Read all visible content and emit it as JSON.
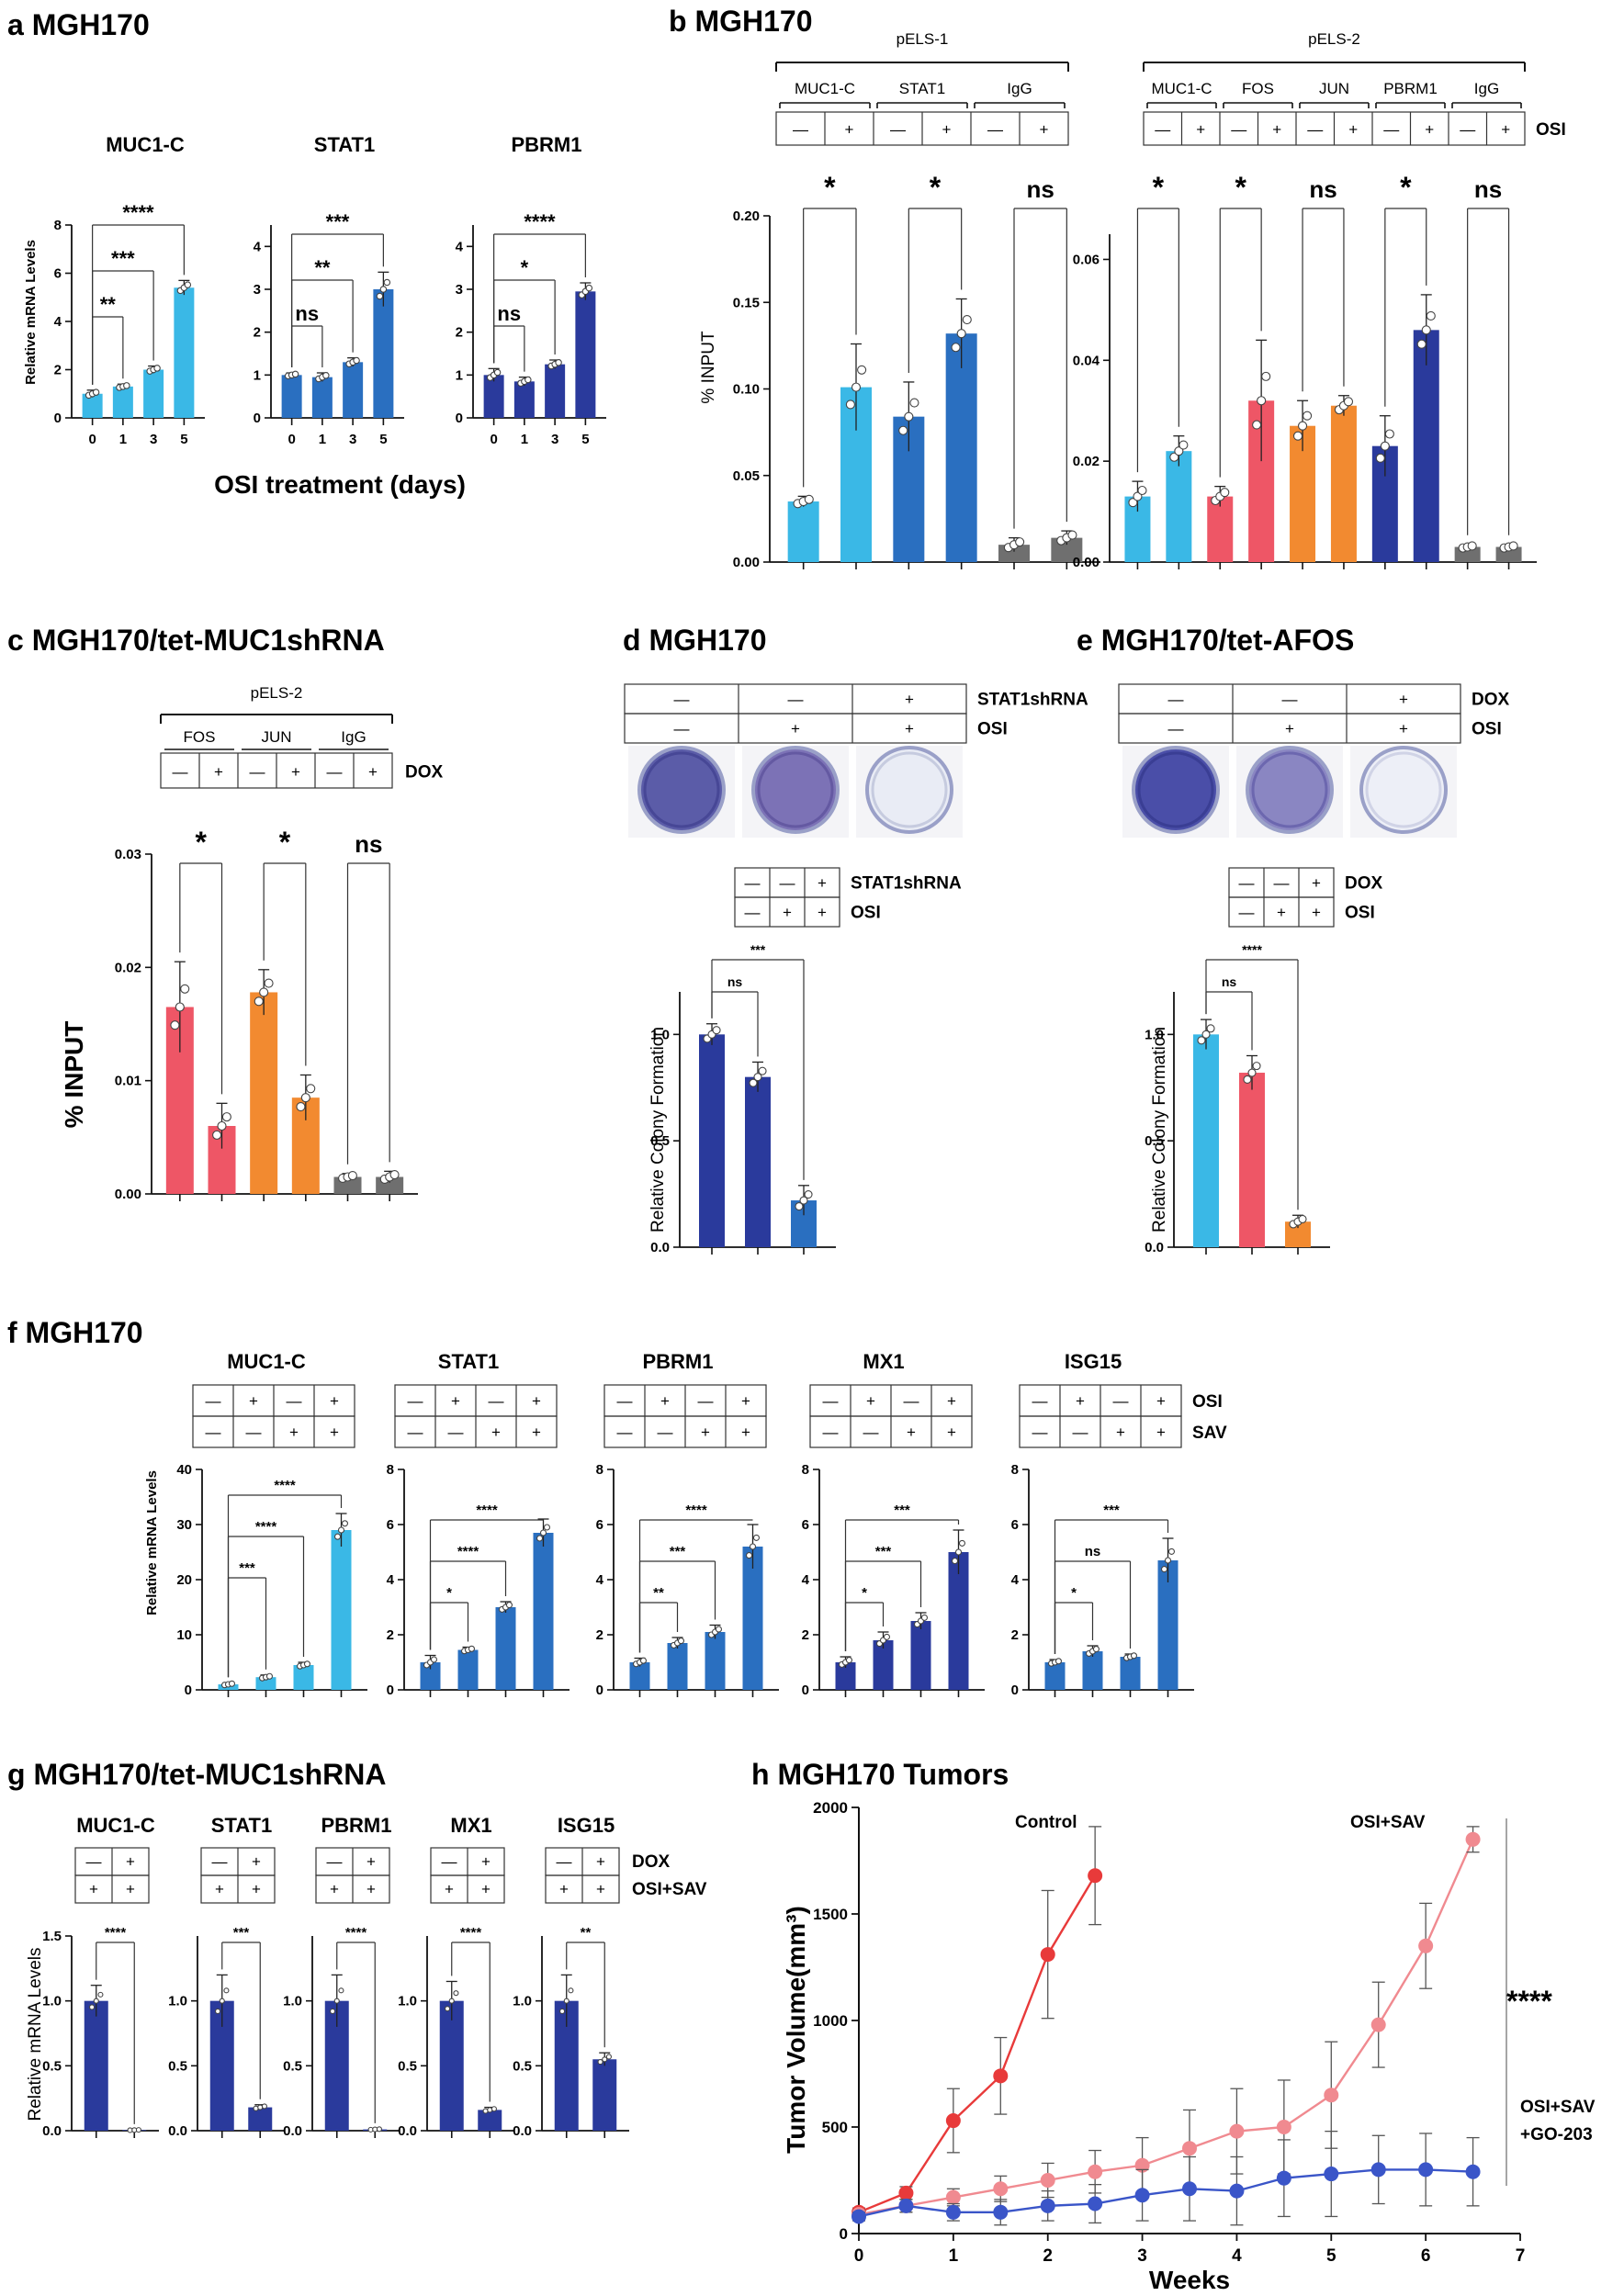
{
  "colors": {
    "cyan": "#3ab8e6",
    "blue": "#2a6fc0",
    "navy": "#2a3a9c",
    "red": "#ee5666",
    "orange": "#f28a30",
    "gray": "#6f6f6f",
    "tumor_control": "#e83a3a",
    "tumor_osisav": "#f08a90",
    "tumor_go": "#3a55c8"
  },
  "labels": {
    "a": "a MGH170",
    "b": "b MGH170",
    "c": "c MGH170/tet-MUC1shRNA",
    "d": "d MGH170",
    "e": "e MGH170/tet-AFOS",
    "f": "f MGH170",
    "g": "g MGH170/tet-MUC1shRNA",
    "h": "h MGH170 Tumors"
  },
  "text": {
    "a_xlabel": "OSI treatment (days)",
    "ylab_mrna": "Relative mRNA Levels",
    "ylab_input": "% INPUT",
    "ylab_colony": "Relative Colony Formation",
    "b_left_group": "pELS-1",
    "b_right_group": "pELS-2",
    "c_group": "pELS-2",
    "osi": "OSI",
    "dox": "DOX",
    "sav": "SAV",
    "osi_sav": "OSI+SAV",
    "stat1shrna": "STAT1shRNA",
    "h_xlabel": "Weeks",
    "h_ylabel": "Tumor Volume(mm³)",
    "h_control": "Control",
    "h_osisav": "OSI+SAV",
    "h_go_line1": "OSI+SAV",
    "h_go_line2": "+GO-203",
    "h_sig": "****"
  },
  "chart_data": [
    {
      "id": "a",
      "type": "bar",
      "ylabel": "Relative mRNA Levels",
      "xlabel": "OSI treatment (days)",
      "categories": [
        "0",
        "1",
        "3",
        "5"
      ],
      "subplots": [
        {
          "title": "MUC1-C",
          "ylim": [
            0,
            8
          ],
          "yticks": [
            0,
            2,
            4,
            6,
            8
          ],
          "values": [
            1.0,
            1.3,
            2.0,
            5.4
          ],
          "errors": [
            0.15,
            0.1,
            0.15,
            0.3
          ],
          "sig": [
            {
              "a": 0,
              "b": 1,
              "t": "**"
            },
            {
              "a": 0,
              "b": 2,
              "t": "***"
            },
            {
              "a": 0,
              "b": 3,
              "t": "****"
            }
          ]
        },
        {
          "title": "STAT1",
          "ylim": [
            0,
            4.5
          ],
          "yticks": [
            0,
            1,
            2,
            3,
            4
          ],
          "values": [
            1.0,
            0.95,
            1.3,
            3.0
          ],
          "errors": [
            0.05,
            0.1,
            0.1,
            0.4
          ],
          "sig": [
            {
              "a": 0,
              "b": 1,
              "t": "ns"
            },
            {
              "a": 0,
              "b": 2,
              "t": "**"
            },
            {
              "a": 0,
              "b": 3,
              "t": "***"
            }
          ]
        },
        {
          "title": "PBRM1",
          "ylim": [
            0,
            4.5
          ],
          "yticks": [
            0,
            1,
            2,
            3,
            4
          ],
          "values": [
            1.0,
            0.85,
            1.25,
            2.95
          ],
          "errors": [
            0.15,
            0.1,
            0.1,
            0.2
          ],
          "sig": [
            {
              "a": 0,
              "b": 1,
              "t": "ns"
            },
            {
              "a": 0,
              "b": 2,
              "t": "*"
            },
            {
              "a": 0,
              "b": 3,
              "t": "****"
            }
          ]
        }
      ]
    },
    {
      "id": "b",
      "type": "bar",
      "ylabel": "% INPUT",
      "subplots": [
        {
          "group": "pELS-1",
          "ylim": [
            0,
            0.2
          ],
          "yticks": [
            "0.00",
            "0.05",
            "0.10",
            "0.15",
            "0.20"
          ],
          "targets": [
            "MUC1-C",
            "STAT1",
            "IgG"
          ],
          "osi": [
            "—",
            "+",
            "—",
            "+",
            "—",
            "+"
          ],
          "values": [
            0.035,
            0.101,
            0.084,
            0.132,
            0.01,
            0.014
          ],
          "errors": [
            0.003,
            0.025,
            0.02,
            0.02,
            0.004,
            0.004
          ],
          "sig": [
            "*",
            "*",
            "ns"
          ]
        },
        {
          "group": "pELS-2",
          "ylim": [
            0,
            0.065
          ],
          "yticks": [
            "0.00",
            "0.02",
            "0.04",
            "0.06"
          ],
          "targets": [
            "MUC1-C",
            "FOS",
            "JUN",
            "PBRM1",
            "IgG"
          ],
          "osi": [
            "—",
            "+",
            "—",
            "+",
            "—",
            "+",
            "—",
            "+",
            "—",
            "+"
          ],
          "values": [
            0.013,
            0.022,
            0.013,
            0.032,
            0.027,
            0.031,
            0.023,
            0.046,
            0.003,
            0.003
          ],
          "errors": [
            0.003,
            0.003,
            0.002,
            0.012,
            0.005,
            0.002,
            0.006,
            0.007,
            0.0005,
            0.0005
          ],
          "sig": [
            "*",
            "*",
            "ns",
            "*",
            "ns"
          ]
        }
      ]
    },
    {
      "id": "c",
      "type": "bar",
      "ylabel": "% INPUT",
      "group": "pELS-2",
      "ylim": [
        0,
        0.03
      ],
      "yticks": [
        "0.00",
        "0.01",
        "0.02",
        "0.03"
      ],
      "targets": [
        "FOS",
        "JUN",
        "IgG"
      ],
      "dox": [
        "—",
        "+",
        "—",
        "+",
        "—",
        "+"
      ],
      "values": [
        0.0165,
        0.006,
        0.0178,
        0.0085,
        0.0015,
        0.0015
      ],
      "errors": [
        0.004,
        0.002,
        0.002,
        0.002,
        0.0003,
        0.0005
      ],
      "sig": [
        "*",
        "*",
        "ns"
      ]
    },
    {
      "id": "d",
      "type": "bar",
      "ylabel": "Relative Colony Formation",
      "plate_rows": [
        {
          "label": "STAT1shRNA",
          "vals": [
            "—",
            "—",
            "+"
          ]
        },
        {
          "label": "OSI",
          "vals": [
            "—",
            "+",
            "+"
          ]
        }
      ],
      "table_rows": [
        {
          "label": "STAT1shRNA",
          "vals": [
            "—",
            "—",
            "+"
          ]
        },
        {
          "label": "OSI",
          "vals": [
            "—",
            "+",
            "+"
          ]
        }
      ],
      "ylim": [
        0,
        1.2
      ],
      "yticks": [
        "0.0",
        "0.5",
        "1.0"
      ],
      "values": [
        1.0,
        0.8,
        0.22
      ],
      "errors": [
        0.05,
        0.07,
        0.07
      ],
      "sig": [
        {
          "a": 0,
          "b": 1,
          "t": "ns"
        },
        {
          "a": 0,
          "b": 2,
          "t": "***"
        }
      ]
    },
    {
      "id": "e",
      "type": "bar",
      "ylabel": "Relative Colony Formation",
      "plate_rows": [
        {
          "label": "DOX",
          "vals": [
            "—",
            "—",
            "+"
          ]
        },
        {
          "label": "OSI",
          "vals": [
            "—",
            "+",
            "+"
          ]
        }
      ],
      "table_rows": [
        {
          "label": "DOX",
          "vals": [
            "—",
            "—",
            "+"
          ]
        },
        {
          "label": "OSI",
          "vals": [
            "—",
            "+",
            "+"
          ]
        }
      ],
      "ylim": [
        0,
        1.2
      ],
      "yticks": [
        "0.0",
        "0.5",
        "1.0"
      ],
      "values": [
        1.0,
        0.82,
        0.12
      ],
      "errors": [
        0.07,
        0.08,
        0.03
      ],
      "sig": [
        {
          "a": 0,
          "b": 1,
          "t": "ns"
        },
        {
          "a": 0,
          "b": 2,
          "t": "****"
        }
      ]
    },
    {
      "id": "f",
      "type": "bar",
      "ylabel": "Relative mRNA Levels",
      "rows": [
        {
          "label": "OSI",
          "vals": [
            "—",
            "+",
            "—",
            "+"
          ]
        },
        {
          "label": "SAV",
          "vals": [
            "—",
            "—",
            "+",
            "+"
          ]
        }
      ],
      "subplots": [
        {
          "title": "MUC1-C",
          "ylim": [
            0,
            40
          ],
          "yticks": [
            0,
            10,
            20,
            30,
            40
          ],
          "values": [
            1,
            2.3,
            4.5,
            29
          ],
          "errors": [
            0.3,
            0.4,
            0.5,
            3
          ],
          "sig": [
            {
              "a": 0,
              "b": 1,
              "t": "***"
            },
            {
              "a": 0,
              "b": 2,
              "t": "****"
            },
            {
              "a": 0,
              "b": 3,
              "t": "****"
            }
          ]
        },
        {
          "title": "STAT1",
          "ylim": [
            0,
            8
          ],
          "yticks": [
            0,
            2,
            4,
            6,
            8
          ],
          "values": [
            1.0,
            1.45,
            3.0,
            5.7
          ],
          "errors": [
            0.25,
            0.1,
            0.2,
            0.5
          ],
          "sig": [
            {
              "a": 0,
              "b": 1,
              "t": "*"
            },
            {
              "a": 0,
              "b": 2,
              "t": "****"
            },
            {
              "a": 0,
              "b": 3,
              "t": "****"
            }
          ]
        },
        {
          "title": "PBRM1",
          "ylim": [
            0,
            8
          ],
          "yticks": [
            0,
            2,
            4,
            6,
            8
          ],
          "values": [
            1.0,
            1.7,
            2.1,
            5.2
          ],
          "errors": [
            0.15,
            0.2,
            0.25,
            0.8
          ],
          "sig": [
            {
              "a": 0,
              "b": 1,
              "t": "**"
            },
            {
              "a": 0,
              "b": 2,
              "t": "***"
            },
            {
              "a": 0,
              "b": 3,
              "t": "****"
            }
          ]
        },
        {
          "title": "MX1",
          "ylim": [
            0,
            8
          ],
          "yticks": [
            0,
            2,
            4,
            6,
            8
          ],
          "values": [
            1.0,
            1.8,
            2.5,
            5.0
          ],
          "errors": [
            0.2,
            0.3,
            0.3,
            0.8
          ],
          "sig": [
            {
              "a": 0,
              "b": 1,
              "t": "*"
            },
            {
              "a": 0,
              "b": 2,
              "t": "***"
            },
            {
              "a": 0,
              "b": 3,
              "t": "***"
            }
          ]
        },
        {
          "title": "ISG15",
          "ylim": [
            0,
            8
          ],
          "yticks": [
            0,
            2,
            4,
            6,
            8
          ],
          "values": [
            1.0,
            1.4,
            1.2,
            4.7
          ],
          "errors": [
            0.1,
            0.2,
            0.1,
            0.8
          ],
          "sig": [
            {
              "a": 0,
              "b": 1,
              "t": "*"
            },
            {
              "a": 0,
              "b": 2,
              "t": "ns"
            },
            {
              "a": 0,
              "b": 3,
              "t": "***"
            }
          ]
        }
      ]
    },
    {
      "id": "g",
      "type": "bar",
      "ylabel": "Relative mRNA Levels",
      "rows": [
        {
          "label": "DOX",
          "vals": [
            "—",
            "+"
          ]
        },
        {
          "label": "OSI+SAV",
          "vals": [
            "+",
            "+"
          ]
        }
      ],
      "subplots": [
        {
          "title": "MUC1-C",
          "ylim": [
            0,
            1.5
          ],
          "yticks": [
            "0.0",
            "0.5",
            "1.0",
            "1.5"
          ],
          "values": [
            1.0,
            0.005
          ],
          "errors": [
            0.12,
            0.003
          ],
          "sig": "****"
        },
        {
          "title": "STAT1",
          "ylim": [
            0,
            1.5
          ],
          "yticks": [
            "0.0",
            "0.5",
            "1.0"
          ],
          "values": [
            1.0,
            0.18
          ],
          "errors": [
            0.2,
            0.02
          ],
          "sig": "***"
        },
        {
          "title": "PBRM1",
          "ylim": [
            0,
            1.5
          ],
          "yticks": [
            "0.0",
            "0.5",
            "1.0"
          ],
          "values": [
            1.0,
            0.01
          ],
          "errors": [
            0.2,
            0.005
          ],
          "sig": "****"
        },
        {
          "title": "MX1",
          "ylim": [
            0,
            1.5
          ],
          "yticks": [
            "0.0",
            "0.5",
            "1.0"
          ],
          "values": [
            1.0,
            0.16
          ],
          "errors": [
            0.15,
            0.02
          ],
          "sig": "****"
        },
        {
          "title": "ISG15",
          "ylim": [
            0,
            1.5
          ],
          "yticks": [
            "0.0",
            "0.5",
            "1.0"
          ],
          "values": [
            1.0,
            0.55
          ],
          "errors": [
            0.2,
            0.05
          ],
          "sig": "**"
        }
      ]
    },
    {
      "id": "h",
      "type": "line",
      "xlabel": "Weeks",
      "ylabel": "Tumor Volume(mm³)",
      "xlim": [
        0,
        7
      ],
      "ylim": [
        0,
        2000
      ],
      "xticks": [
        0,
        1,
        2,
        3,
        4,
        5,
        6,
        7
      ],
      "yticks": [
        0,
        500,
        1000,
        1500,
        2000
      ],
      "series": [
        {
          "name": "Control",
          "x": [
            0,
            0.5,
            1,
            1.5,
            2,
            2.5
          ],
          "y": [
            100,
            190,
            530,
            740,
            1310,
            1680
          ],
          "err": [
            20,
            30,
            150,
            180,
            300,
            230
          ]
        },
        {
          "name": "OSI+SAV",
          "x": [
            0,
            0.5,
            1,
            1.5,
            2,
            2.5,
            3,
            3.5,
            4,
            4.5,
            5,
            5.5,
            6,
            6.5
          ],
          "y": [
            90,
            130,
            170,
            210,
            250,
            290,
            320,
            400,
            480,
            500,
            650,
            980,
            1350,
            1850
          ],
          "err": [
            20,
            30,
            40,
            60,
            80,
            100,
            130,
            180,
            200,
            220,
            250,
            200,
            200,
            60
          ]
        },
        {
          "name": "OSI+SAV +GO-203",
          "x": [
            0,
            0.5,
            1,
            1.5,
            2,
            2.5,
            3,
            3.5,
            4,
            4.5,
            5,
            5.5,
            6,
            6.5
          ],
          "y": [
            80,
            130,
            100,
            100,
            130,
            140,
            180,
            210,
            200,
            260,
            280,
            300,
            300,
            290
          ],
          "err": [
            20,
            30,
            40,
            60,
            70,
            90,
            120,
            150,
            160,
            180,
            200,
            160,
            170,
            160
          ]
        }
      ]
    }
  ]
}
